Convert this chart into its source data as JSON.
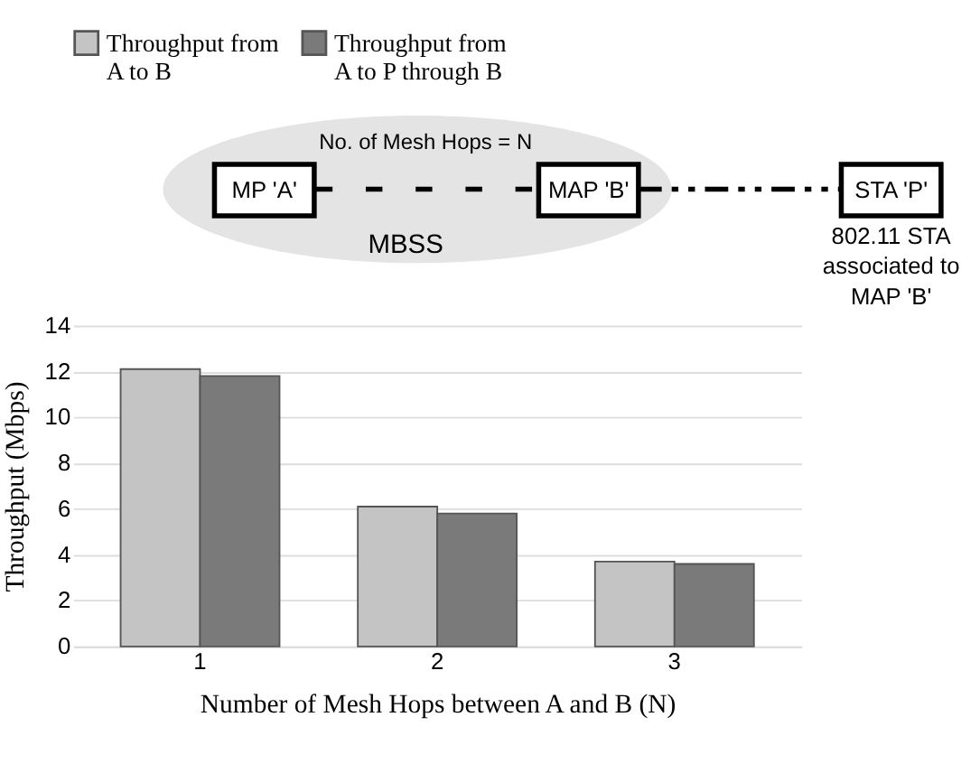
{
  "chart_data": {
    "type": "bar",
    "xlabel": "Number of Mesh Hops between A and B (N)",
    "ylabel": "Throughput (Mbps)",
    "categories": [
      "1",
      "2",
      "3"
    ],
    "series": [
      {
        "name": "Throughput from A to B",
        "color": "#c4c4c4",
        "values": [
          12.1,
          6.1,
          3.7
        ]
      },
      {
        "name": "Throughput from A to P through B",
        "color": "#7a7a7a",
        "values": [
          11.8,
          5.8,
          3.6
        ]
      }
    ],
    "ylim": [
      0,
      14
    ],
    "yticks": [
      0,
      2,
      4,
      6,
      8,
      10,
      12,
      14
    ],
    "grid": "y",
    "legend": "top",
    "annotations": [
      "No. of Mesh Hops = N",
      "MP 'A'",
      "MAP 'B'",
      "STA 'P'",
      "MBSS",
      "802.11 STA associated to MAP 'B'"
    ]
  }
}
